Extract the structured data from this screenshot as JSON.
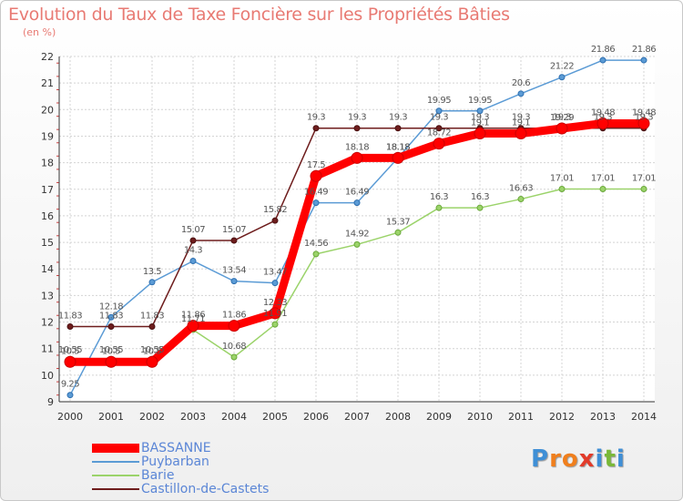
{
  "title": "Evolution du Taux de Taxe Foncière sur les Propriétés Bâties",
  "subtitle": "(en %)",
  "brand": {
    "letters": [
      "P",
      "r",
      "o",
      "x",
      "i",
      "t",
      "i"
    ],
    "colors": [
      "#3f8fd6",
      "#f07f1d",
      "#f07f1d",
      "#e23b2a",
      "#3f8fd6",
      "#7ab838",
      "#3f8fd6"
    ]
  },
  "chart_data": {
    "type": "line",
    "title": "Evolution du Taux de Taxe Foncière sur les Propriétés Bâties",
    "ylabel": "(en %)",
    "xlabel": "",
    "categories": [
      2000,
      2001,
      2002,
      2003,
      2004,
      2005,
      2006,
      2007,
      2008,
      2009,
      2010,
      2011,
      2012,
      2013,
      2014
    ],
    "ylim": [
      9,
      22
    ],
    "yticks": [
      9,
      10,
      11,
      12,
      13,
      14,
      15,
      16,
      17,
      18,
      19,
      20,
      21,
      22
    ],
    "grid": true,
    "legend_position": "bottom-left",
    "series": [
      {
        "name": "BASSANNE",
        "color": "#ff0000",
        "values": [
          10.5,
          10.5,
          10.5,
          11.86,
          11.86,
          12.33,
          17.5,
          18.18,
          18.18,
          18.72,
          19.1,
          19.1,
          19.29,
          19.48,
          19.48
        ],
        "labels": [
          "10.5",
          "10.5",
          "10.5",
          "11.86",
          "11.86",
          "12.33",
          "17.5",
          "18.18",
          "18.18",
          "18.72",
          "19.1",
          "19.1",
          "19.29",
          "19.48",
          "19.48"
        ]
      },
      {
        "name": "Puybarban",
        "color": "#5b9bd5",
        "values": [
          9.25,
          12.18,
          13.5,
          14.3,
          13.54,
          13.47,
          16.49,
          16.49,
          18.18,
          19.95,
          19.95,
          20.6,
          21.22,
          21.86,
          21.86
        ],
        "labels": [
          "9.25",
          "12.18",
          "13.5",
          "14.3",
          "13.54",
          "13.47",
          "16.49",
          "16.49",
          "18.18",
          "19.95",
          "19.95",
          "20.6",
          "21.22",
          "21.86",
          "21.86"
        ]
      },
      {
        "name": "Barie",
        "color": "#9bd36a",
        "values": [
          10.55,
          10.55,
          10.55,
          11.71,
          10.68,
          11.91,
          14.56,
          14.92,
          15.37,
          16.3,
          16.3,
          16.63,
          17.01,
          17.01,
          17.01
        ],
        "labels": [
          "10.55",
          "10.55",
          "10.55",
          "11.71",
          "10.68",
          "11.91",
          "14.56",
          "14.92",
          "15.37",
          "16.3",
          "16.3",
          "16.63",
          "17.01",
          "17.01",
          "17.01"
        ]
      },
      {
        "name": "Castillon-de-Castets",
        "color": "#6e1d1d",
        "values": [
          11.83,
          11.83,
          11.83,
          15.07,
          15.07,
          15.82,
          19.3,
          19.3,
          19.3,
          19.3,
          19.3,
          19.3,
          19.3,
          19.3,
          19.3
        ],
        "labels": [
          "11.83",
          "11.83",
          "11.83",
          "15.07",
          "15.07",
          "15.82",
          "19.3",
          "19.3",
          "19.3",
          "19.3",
          "19.3",
          "19.3",
          "19.3",
          "19.3",
          "19.3"
        ]
      }
    ]
  }
}
